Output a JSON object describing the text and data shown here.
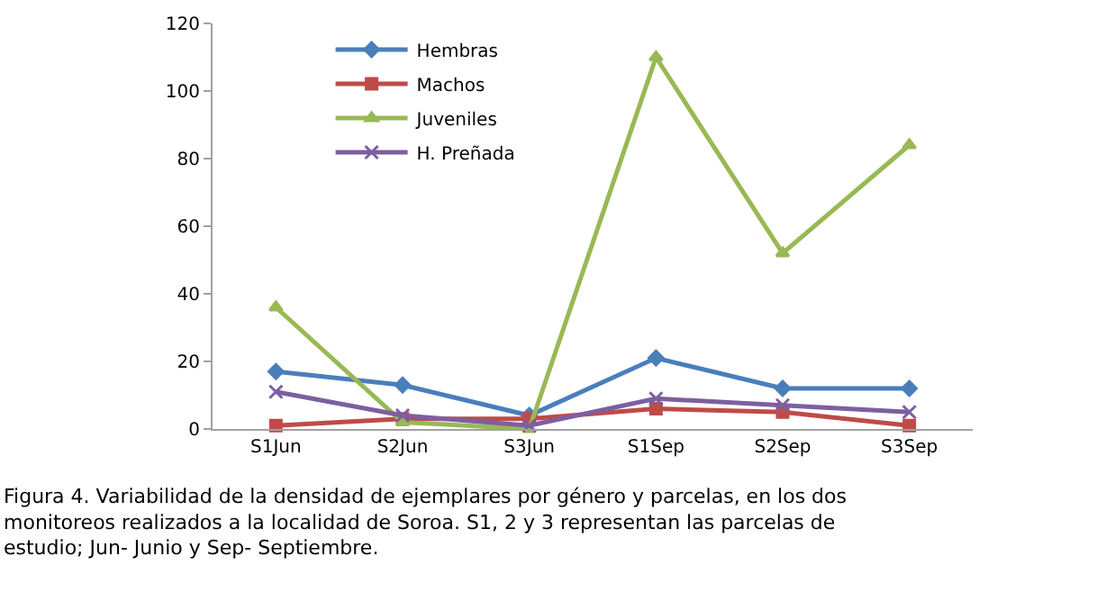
{
  "chart_data": {
    "type": "line",
    "categories": [
      "S1Jun",
      "S2Jun",
      "S3Jun",
      "S1Sep",
      "S2Sep",
      "S3Sep"
    ],
    "series": [
      {
        "name": "Hembras",
        "color": "#4a7ebb",
        "marker": "diamond",
        "values": [
          17,
          13,
          4,
          21,
          12,
          12
        ]
      },
      {
        "name": "Machos",
        "color": "#be4b48",
        "marker": "square",
        "values": [
          1,
          3,
          3,
          6,
          5,
          1
        ]
      },
      {
        "name": "Juveniles",
        "color": "#98b954",
        "marker": "triangle",
        "values": [
          36,
          2,
          0,
          110,
          52,
          84
        ]
      },
      {
        "name": "H. Preñada",
        "color": "#7d5fa0",
        "marker": "cross",
        "values": [
          11,
          4,
          1,
          9,
          7,
          5
        ]
      }
    ],
    "ylim": [
      0,
      120
    ],
    "yticks": [
      0,
      20,
      40,
      60,
      80,
      100,
      120
    ],
    "grid": false,
    "legend": "top left",
    "line_style": "solid",
    "annotations": [
      "Figura 4. Variabilidad de la densidad de ejemplares por género y parcelas, en los dos monitoreos realizados a la localidad de Soroa. S1, 2 y 3 representan las parcelas de estudio; Jun- Junio y Sep- Septiembre."
    ]
  }
}
